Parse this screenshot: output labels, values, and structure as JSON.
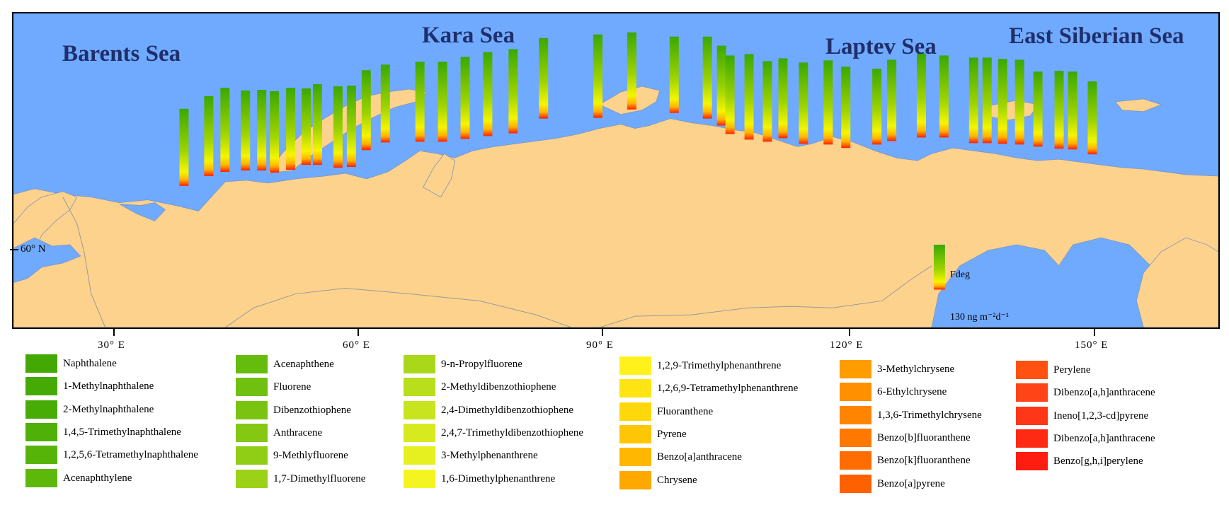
{
  "map": {
    "sea_labels": [
      "Barents Sea",
      "Kara Sea",
      "Laptev Sea",
      "East Siberian Sea"
    ],
    "longitude_labels": [
      "30° E",
      "60° E",
      "90° E",
      "120° E",
      "150° E"
    ],
    "latitude_label": "60° N",
    "colors": {
      "ocean": "#70aaff",
      "land": "#fdd28c",
      "border": "#9a9a9a",
      "bar_top": "#3aa800",
      "bar_mid": "#f5f500",
      "bar_bottom": "#ff2000"
    },
    "scale_legend": {
      "title": "Fdeg",
      "value": "130 ng m⁻²d⁻¹"
    }
  },
  "legend": {
    "columns": [
      [
        {
          "label": "Naphthalene",
          "color": "#43a804"
        },
        {
          "label": "1-Methylnaphthalene",
          "color": "#45aa05"
        },
        {
          "label": "2-Methylnaphthalene",
          "color": "#48ac06"
        },
        {
          "label": "1,4,5-Trimethylnaphthalene",
          "color": "#4fb007"
        },
        {
          "label": "1,2,5,6-Tetramethylnaphthalene",
          "color": "#56b409"
        },
        {
          "label": "Acenaphthylene",
          "color": "#5eb80b"
        }
      ],
      [
        {
          "label": "Acenaphthene",
          "color": "#66bc0d"
        },
        {
          "label": "Fluorene",
          "color": "#70c00f"
        },
        {
          "label": "Dibenzothiophene",
          "color": "#7ac411"
        },
        {
          "label": "Anthracene",
          "color": "#84c813"
        },
        {
          "label": "9-Methlyfluorene",
          "color": "#90cd15"
        },
        {
          "label": "1,7-Dimethylfluorene",
          "color": "#9bd217"
        }
      ],
      [
        {
          "label": "9-n-Propylfluorene",
          "color": "#a9d81a"
        },
        {
          "label": "2-Methyldibenzothiophene",
          "color": "#b8de1c"
        },
        {
          "label": "2,4-Dimethyldibenzothiophene",
          "color": "#c7e41e"
        },
        {
          "label": "2,4,7-Trimethyldibenzothiophene",
          "color": "#d6ea1f"
        },
        {
          "label": "3-Methylphenanthrene",
          "color": "#e6f020"
        },
        {
          "label": "1,6-Dimethylphenanthrene",
          "color": "#f4f520"
        }
      ],
      [
        {
          "label": "1,2,9-Trimethylphenanthrene",
          "color": "#fff21c"
        },
        {
          "label": "1,2,6,9-Tetramethylphenanthrene",
          "color": "#ffe413"
        },
        {
          "label": "Fluoranthene",
          "color": "#ffd80b"
        },
        {
          "label": "Pyrene",
          "color": "#ffc605"
        },
        {
          "label": "Benzo[a]anthracene",
          "color": "#ffb702"
        },
        {
          "label": "Chrysene",
          "color": "#ffa800"
        }
      ],
      [
        {
          "label": "3-Methylchrysene",
          "color": "#ff9c00"
        },
        {
          "label": "6-Ethylchrysene",
          "color": "#ff9000"
        },
        {
          "label": "1,3,6-Trimethylchrysene",
          "color": "#ff8400"
        },
        {
          "label": "Benzo[b]fluoranthene",
          "color": "#ff7800"
        },
        {
          "label": "Benzo[k]fluoranthene",
          "color": "#ff6c00"
        },
        {
          "label": "Benzo[a]pyrene",
          "color": "#ff6000"
        }
      ],
      [
        {
          "label": "Perylene",
          "color": "#ff5210"
        },
        {
          "label": "Dibenzo[a,h]anthracene",
          "color": "#ff4418"
        },
        {
          "label": "Ineno[1,2,3-cd]pyrene",
          "color": "#ff3618"
        },
        {
          "label": "Dibenzo[a,h]anthracene",
          "color": "#ff2a14"
        },
        {
          "label": "Benzo[g,h,i]perylene",
          "color": "#ff1c10"
        }
      ]
    ]
  }
}
